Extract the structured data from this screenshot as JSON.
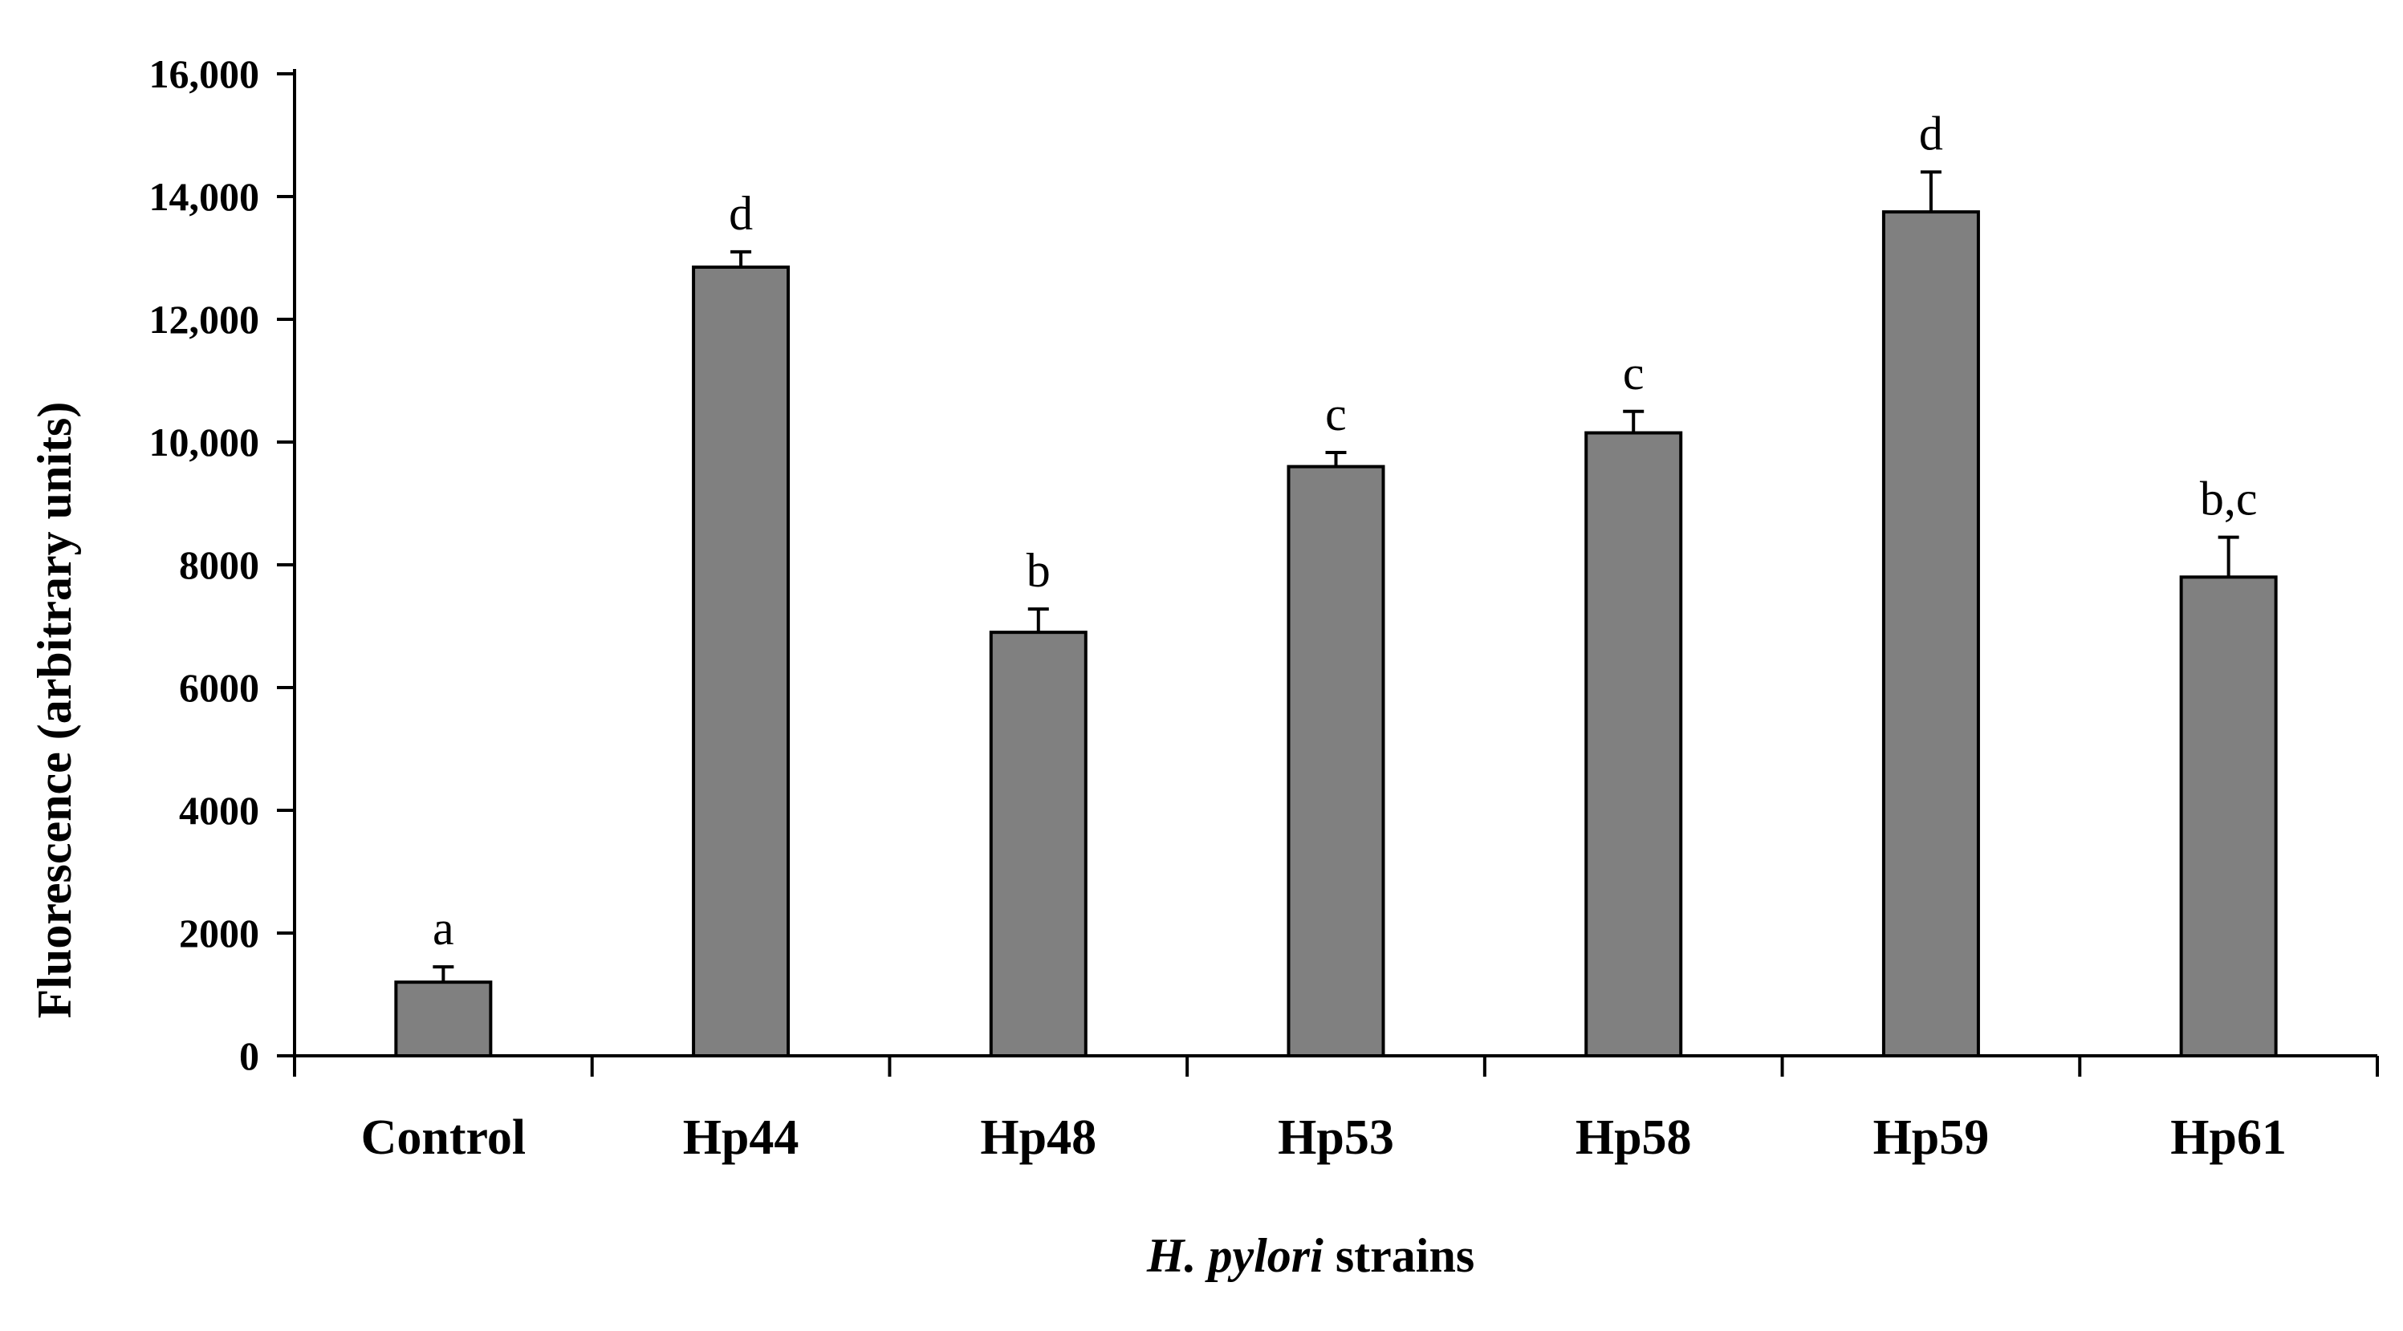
{
  "chart_data": {
    "type": "bar",
    "title": "",
    "categories": [
      "Control",
      "Hp44",
      "Hp48",
      "Hp53",
      "Hp58",
      "Hp59",
      "Hp61"
    ],
    "values": [
      1200,
      12850,
      6900,
      9600,
      10150,
      13750,
      7800
    ],
    "errors": [
      250,
      250,
      380,
      230,
      350,
      650,
      650
    ],
    "significance_letters": [
      "a",
      "d",
      "b",
      "c",
      "c",
      "d",
      "b,c"
    ],
    "ylabel": "Fluorescence (arbitrary units)",
    "xlabel_italic": "H. pylori",
    "xlabel_rest": " strains",
    "ylim": [
      0,
      16000
    ],
    "yticks": [
      0,
      2000,
      4000,
      6000,
      8000,
      10000,
      12000,
      14000,
      16000
    ],
    "ytick_labels": [
      "0",
      "2000",
      "4000",
      "6000",
      "8000",
      "10,000",
      "12,000",
      "14,000",
      "16,000"
    ],
    "grid": false,
    "legend": "none",
    "bar_color": "#808080",
    "error_bars": "positive only"
  }
}
